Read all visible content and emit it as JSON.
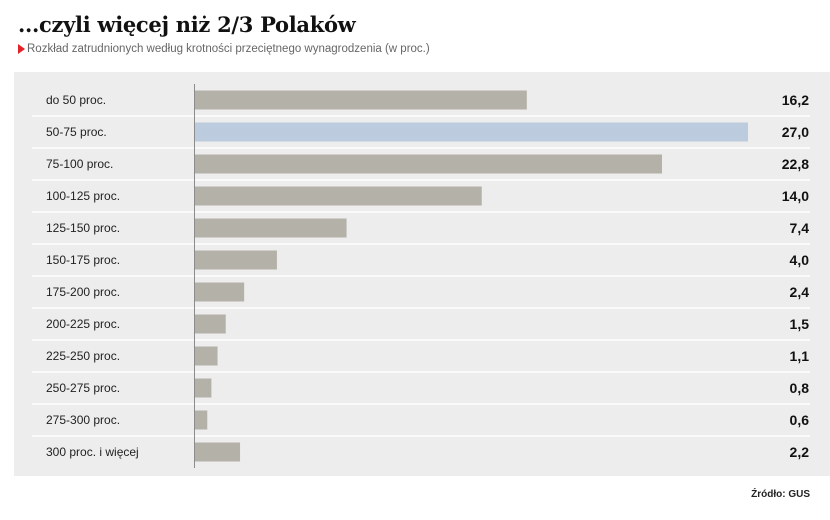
{
  "title": "...czyli więcej niż 2/3 Polaków",
  "subtitle": "Rozkład zatrudnionych według krotności przeciętnego wynagrodzenia (w proc.)",
  "source": "Źródło: GUS",
  "colors": {
    "bar_default": "#b3b1a8",
    "bar_highlight": "#bccbde",
    "panel_bg": "#ededed",
    "accent_triangle": "#e3222a"
  },
  "chart_data": {
    "type": "bar",
    "orientation": "horizontal",
    "categories": [
      "do 50 proc.",
      "50-75 proc.",
      "75-100 proc.",
      "100-125 proc.",
      "125-150 proc.",
      "150-175 proc.",
      "175-200 proc.",
      "200-225 proc.",
      "225-250 proc.",
      "250-275 proc.",
      "275-300 proc.",
      "300 proc. i więcej"
    ],
    "values": [
      16.2,
      27.0,
      22.8,
      14.0,
      7.4,
      4.0,
      2.4,
      1.5,
      1.1,
      0.8,
      0.6,
      2.2
    ],
    "value_labels": [
      "16,2",
      "27,0",
      "22,8",
      "14,0",
      "7,4",
      "4,0",
      "2,4",
      "1,5",
      "1,1",
      "0,8",
      "0,6",
      "2,2"
    ],
    "highlight_index": 1,
    "xlim": [
      0,
      27.0
    ],
    "grid": false,
    "title": "...czyli więcej niż 2/3 Polaków",
    "xlabel": "",
    "ylabel": ""
  }
}
